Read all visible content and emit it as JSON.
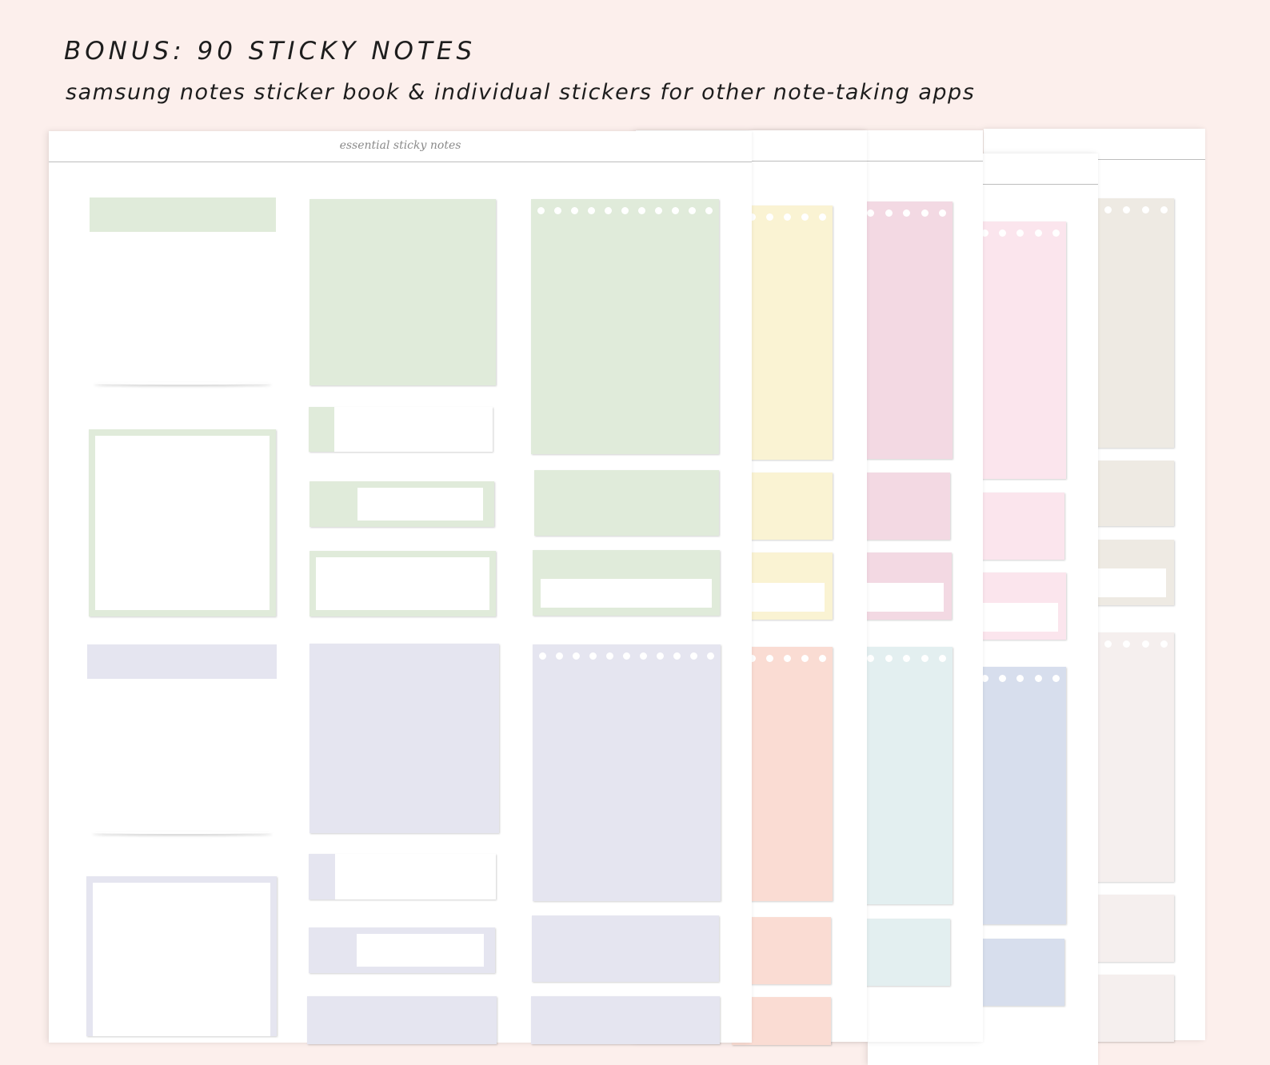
{
  "heading": "BONUS: 90 STICKY NOTES",
  "subheading": "samsung notes sticker book & individual stickers for other note-taking apps",
  "front_sheet_title": "essential sticky notes",
  "colors": {
    "background": "#fcefec",
    "green": "#e0ebda",
    "lavender": "#e5e5f0",
    "yellow": "#faf3d3",
    "peach": "#fadcd3",
    "mauve": "#f3d9e3",
    "aqua": "#e3eff0",
    "pink": "#fbe5ed",
    "periwinkle": "#d7deed",
    "beige": "#eeeae3",
    "blush": "#f5efee"
  }
}
